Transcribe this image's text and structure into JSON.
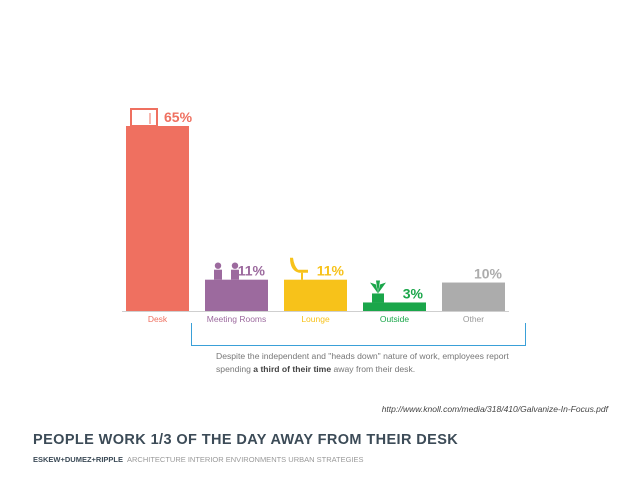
{
  "chart_data": {
    "type": "bar",
    "categories": [
      "Desk",
      "Meeting Rooms",
      "Lounge",
      "Outside",
      "Other"
    ],
    "values": [
      65,
      11,
      11,
      3,
      10
    ],
    "value_labels": [
      "65%",
      "11%",
      "11%",
      "3%",
      "10%"
    ],
    "colors": [
      "#ef7060",
      "#9c6a9e",
      "#f7c21a",
      "#1aa64a",
      "#acacac"
    ],
    "icons": [
      "door-icon",
      "people-icon",
      "lounge-chair-icon",
      "plant-icon",
      ""
    ],
    "ylim": [
      0,
      65
    ],
    "grid": false,
    "legend": "none"
  },
  "annotation": {
    "text_before": "Despite the independent and \"heads down\" nature of work, employees report spending ",
    "text_bold": "a third of their time",
    "text_after": " away from their desk."
  },
  "source_url": "http://www.knoll.com/media/318/410/Galvanize-In-Focus.pdf",
  "title": "PEOPLE WORK 1/3 OF THE DAY AWAY FROM THEIR DESK",
  "footer": {
    "brand": "ESKEW+DUMEZ+RIPPLE",
    "tagline": "ARCHITECTURE  INTERIOR ENVIRONMENTS  URBAN STRATEGIES"
  }
}
